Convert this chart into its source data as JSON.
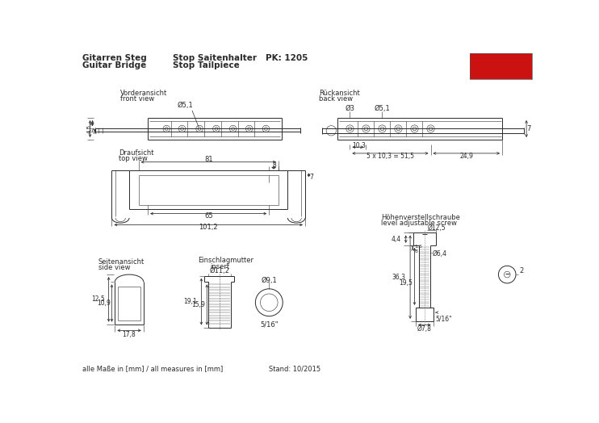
{
  "title_line1": "Gitarren Steg",
  "title_line2": "Guitar Bridge",
  "subtitle_line1": "Stop Saitenhalter",
  "subtitle_line2": "Stop Tailpiece",
  "pk": "PK: 1205",
  "footer_left": "alle Maße in [mm] / all measures in [mm]",
  "footer_right": "Stand: 10/2015",
  "bg_color": "#ffffff",
  "line_color": "#2a2a2a",
  "dim_color": "#2a2a2a",
  "thin_line": 0.4,
  "medium_line": 0.7,
  "thick_line": 1.0
}
